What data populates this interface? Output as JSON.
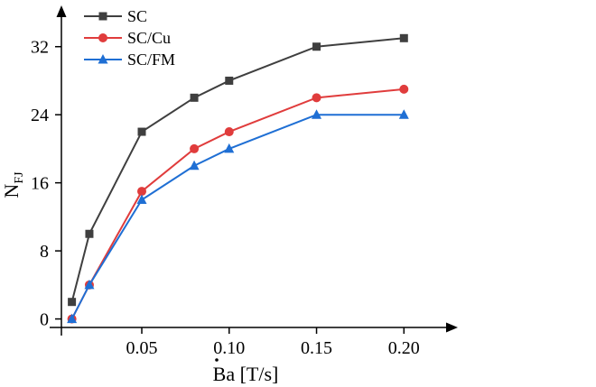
{
  "chart_data": {
    "type": "line",
    "x": [
      0.01,
      0.02,
      0.05,
      0.08,
      0.1,
      0.15,
      0.2
    ],
    "series": [
      {
        "name": "SC",
        "color": "#3f3f3f",
        "marker": "square",
        "values": [
          2,
          10,
          22,
          26,
          28,
          32,
          33
        ]
      },
      {
        "name": "SC/Cu",
        "color": "#e03c3c",
        "marker": "circle",
        "values": [
          0,
          4,
          15,
          20,
          22,
          26,
          27
        ]
      },
      {
        "name": "SC/FM",
        "color": "#1f6fd4",
        "marker": "triangle",
        "values": [
          0,
          4,
          14,
          18,
          20,
          24,
          24
        ]
      }
    ],
    "xticks": [
      "0.05",
      "0.10",
      "0.15",
      "0.20"
    ],
    "xtick_values": [
      0.05,
      0.1,
      0.15,
      0.2
    ],
    "yticks": [
      "0",
      "8",
      "16",
      "24",
      "32"
    ],
    "ytick_values": [
      0,
      8,
      16,
      24,
      32
    ],
    "xlim": [
      0.004,
      0.22
    ],
    "ylim": [
      -1,
      36
    ],
    "xlabel_main": "Ba",
    "xlabel_unit": " [T/s]",
    "ylabel_main": "N",
    "ylabel_sub": "FJ",
    "legend_position": "top-left",
    "grid": false
  }
}
